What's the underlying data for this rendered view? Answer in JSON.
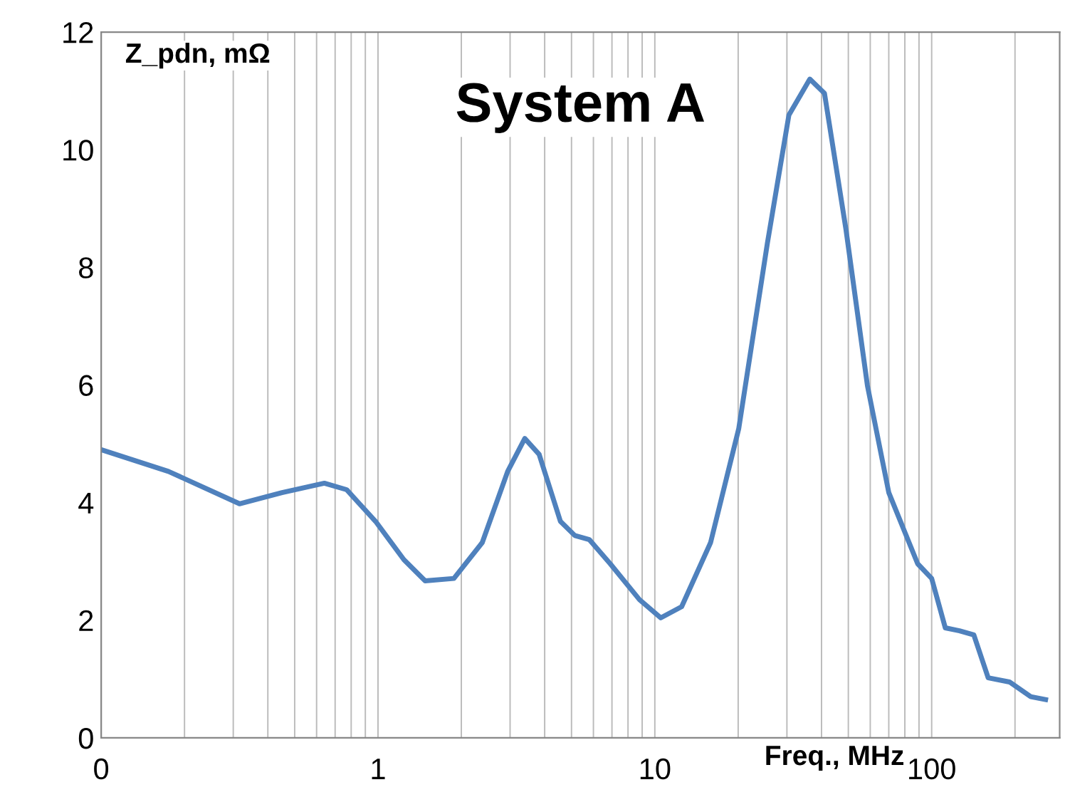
{
  "chart_data": {
    "type": "line",
    "title": "System A",
    "xlabel": "Freq., MHz",
    "ylabel": "Z_pdn, mΩ",
    "log": "x",
    "grid": "x",
    "legend": false,
    "marker": "none",
    "line_style": "solid",
    "xlim": [
      0.1,
      290
    ],
    "xticks": [
      {
        "value": 0.1,
        "label": "0"
      },
      1,
      10,
      100
    ],
    "ylim": [
      0,
      12
    ],
    "yticks": [
      0,
      2,
      4,
      6,
      8,
      10,
      12
    ],
    "series": [
      {
        "color": "#4f81bd",
        "x": [
          0.1,
          0.175,
          0.316,
          0.45,
          0.64,
          0.77,
          0.98,
          1.24,
          1.48,
          1.88,
          2.38,
          2.94,
          3.39,
          3.82,
          4.56,
          5.14,
          5.8,
          6.9,
          8.8,
          10.5,
          12.5,
          15.9,
          20.1,
          25.5,
          30.5,
          36.3,
          41,
          49,
          58.6,
          70,
          89,
          100,
          112,
          126,
          142,
          160,
          191,
          228,
          258
        ],
        "values": [
          4.9,
          4.53,
          3.98,
          4.17,
          4.33,
          4.22,
          3.68,
          3.03,
          2.67,
          2.71,
          3.32,
          4.53,
          5.09,
          4.82,
          3.68,
          3.44,
          3.37,
          2.96,
          2.35,
          2.04,
          2.23,
          3.32,
          5.26,
          8.41,
          10.59,
          11.2,
          10.96,
          8.65,
          5.99,
          4.17,
          2.96,
          2.71,
          1.87,
          1.82,
          1.75,
          1.02,
          0.95,
          0.7,
          0.65
        ]
      }
    ]
  }
}
